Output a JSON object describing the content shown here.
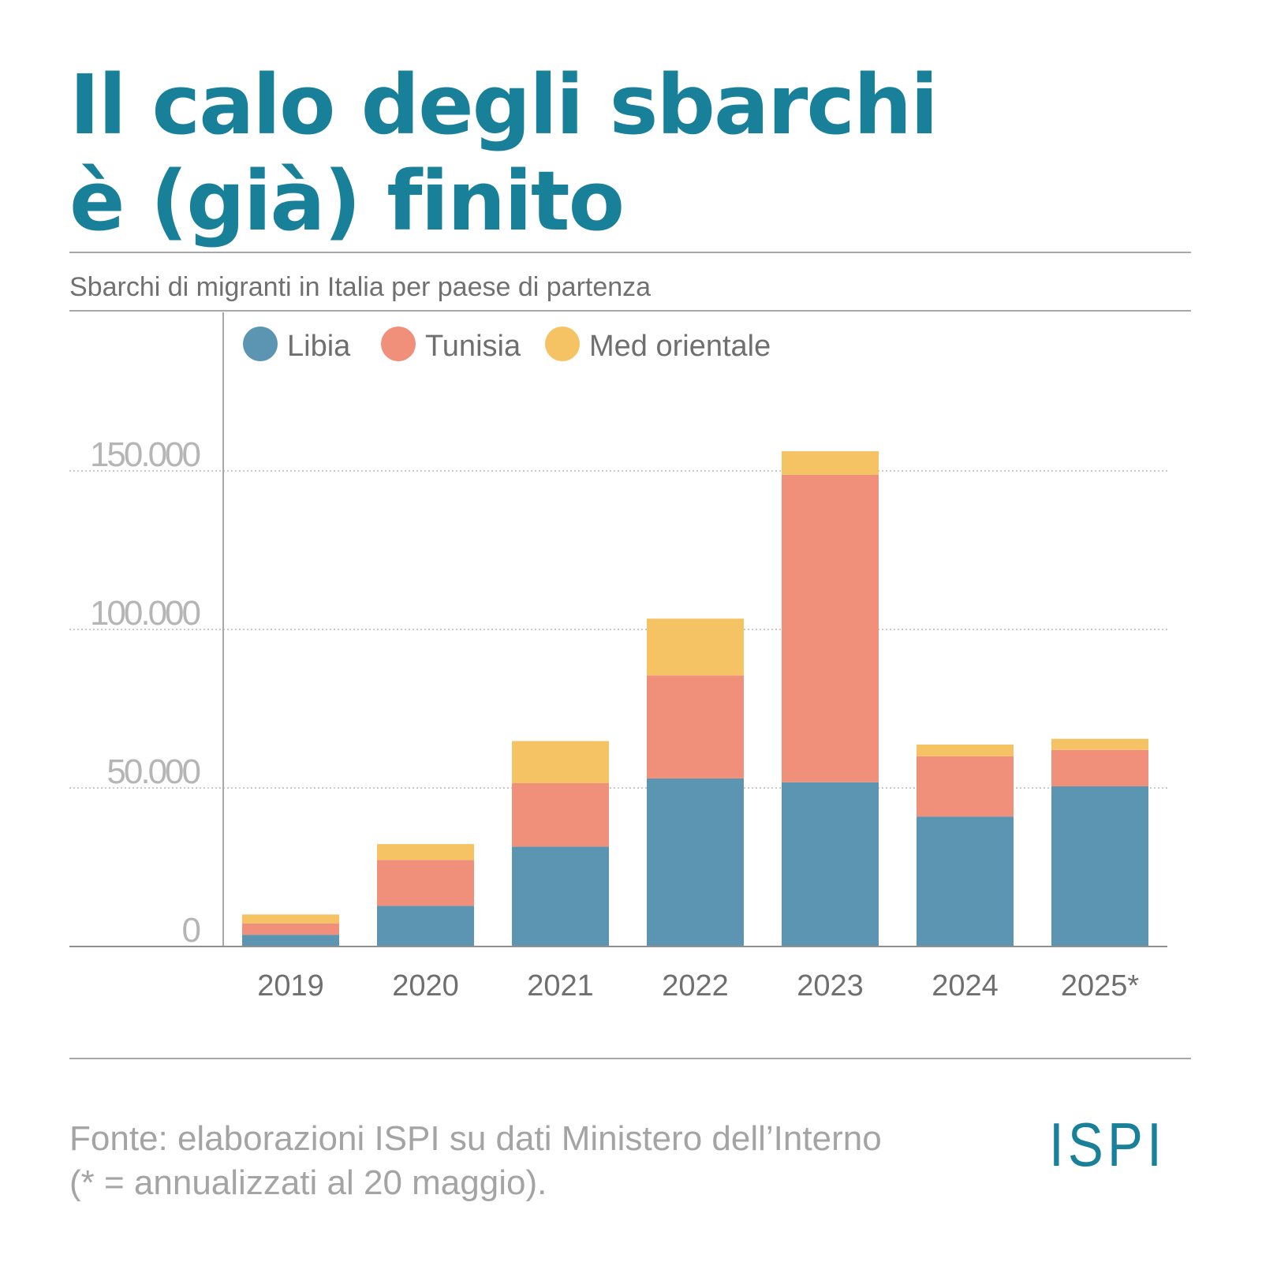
{
  "header": {
    "title_line1": "Il calo degli sbarchi",
    "title_line2": "è (già) finito",
    "subtitle": "Sbarchi di migranti in Italia per paese di partenza"
  },
  "footer": {
    "source_line1": "Fonte: elaborazioni ISPI su dati Ministero dell’Interno",
    "source_line2": "(* = annualizzati al 20 maggio).",
    "logo_text": "ISPI"
  },
  "colors": {
    "title": "#19809a",
    "libia": "#5b95b2",
    "tunisia": "#f0907a",
    "med_orientale": "#f5c264",
    "axis_text": "#b5b5b5",
    "category_text": "#6f6f6f"
  },
  "chart_data": {
    "type": "bar",
    "stacked": true,
    "categories": [
      "2019",
      "2020",
      "2021",
      "2022",
      "2023",
      "2024",
      "2025*"
    ],
    "series": [
      {
        "name": "Libia",
        "color": "#5b95b2",
        "values": [
          3700,
          12800,
          31500,
          53000,
          51800,
          41000,
          50500
        ]
      },
      {
        "name": "Tunisia",
        "color": "#f0907a",
        "values": [
          3600,
          14500,
          20000,
          32500,
          97000,
          19000,
          11500
        ]
      },
      {
        "name": "Med orientale",
        "color": "#f5c264",
        "values": [
          2800,
          5000,
          13300,
          17900,
          7400,
          3700,
          3500
        ]
      }
    ],
    "yticks": [
      0,
      50000,
      100000,
      150000
    ],
    "ytick_labels": [
      "0",
      "50.000",
      "100.000",
      "150.000"
    ],
    "ylim": [
      0,
      150000
    ],
    "grid": true,
    "legend_position": "top-left"
  }
}
